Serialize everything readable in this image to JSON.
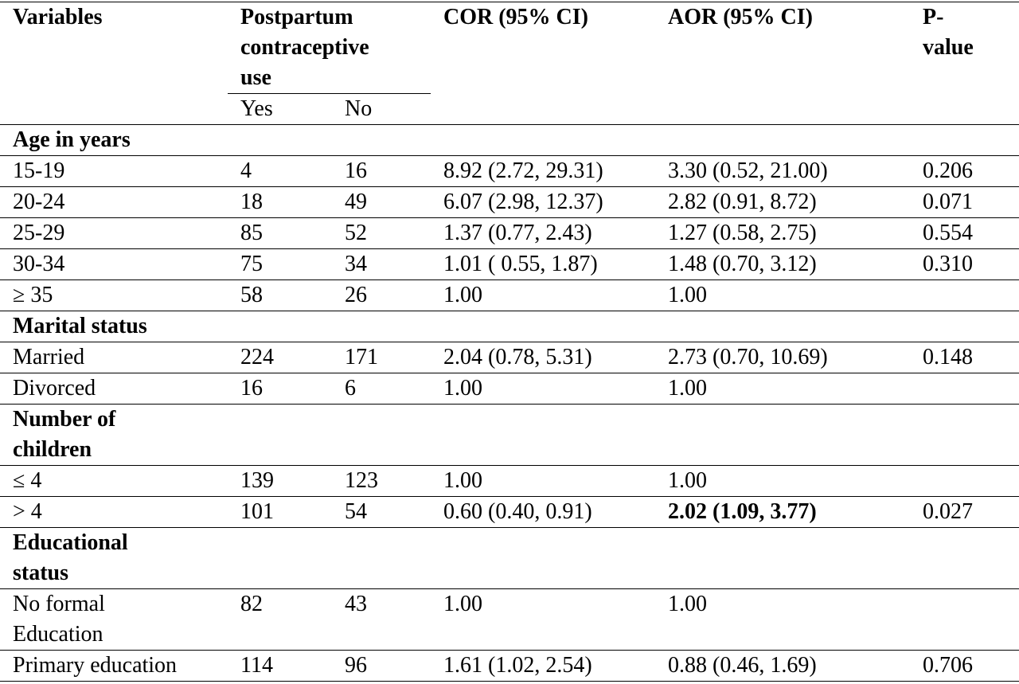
{
  "headers": {
    "variables": "Variables",
    "postpartum": "Postpartum contraceptive use",
    "cor": "COR (95% CI)",
    "aor": "AOR (95% CI)",
    "pvalue": "P-value",
    "yes": "Yes",
    "no": "No"
  },
  "rows": [
    {
      "section": "Age in years"
    },
    {
      "label": "15-19",
      "yes": "4",
      "no": "16",
      "cor": "8.92 (2.72, 29.31)",
      "aor": "3.30 (0.52, 21.00)",
      "p": "0.206"
    },
    {
      "label": "20-24",
      "yes": "18",
      "no": "49",
      "cor": "6.07 (2.98, 12.37)",
      "aor": "2.82 (0.91, 8.72)",
      "p": "0.071"
    },
    {
      "label": "25-29",
      "yes": "85",
      "no": "52",
      "cor": "1.37 (0.77, 2.43)",
      "aor": "1.27 (0.58, 2.75)",
      "p": "0.554"
    },
    {
      "label": "30-34",
      "yes": "75",
      "no": "34",
      "cor": "1.01 ( 0.55, 1.87)",
      "aor": "1.48 (0.70, 3.12)",
      "p": "0.310"
    },
    {
      "label": "≥ 35",
      "yes": "58",
      "no": "26",
      "cor": "1.00",
      "aor": "1.00",
      "p": ""
    },
    {
      "section": "Marital status"
    },
    {
      "label": "Married",
      "yes": "224",
      "no": "171",
      "cor": "2.04 (0.78, 5.31)",
      "aor": "2.73 (0.70, 10.69)",
      "p": "0.148"
    },
    {
      "label": "Divorced",
      "yes": "16",
      "no": "6",
      "cor": "1.00",
      "aor": "1.00",
      "p": ""
    },
    {
      "section": "Number of children"
    },
    {
      "label": "≤ 4",
      "yes": "139",
      "no": "123",
      "cor": "1.00",
      "aor": "1.00",
      "p": ""
    },
    {
      "label": "> 4",
      "yes": "101",
      "no": "54",
      "cor": "0.60 (0.40, 0.91)",
      "aor": "2.02 (1.09, 3.77)",
      "aor_bold": true,
      "p": "0.027"
    },
    {
      "section": "Educational status"
    },
    {
      "label": "No formal Education",
      "yes": "82",
      "no": "43",
      "cor": "1.00",
      "aor": "1.00",
      "p": ""
    },
    {
      "label": "Primary education",
      "yes": "114",
      "no": "96",
      "cor": "1.61 (1.02, 2.54)",
      "aor": "0.88 (0.46, 1.69)",
      "p": "0.706"
    }
  ]
}
